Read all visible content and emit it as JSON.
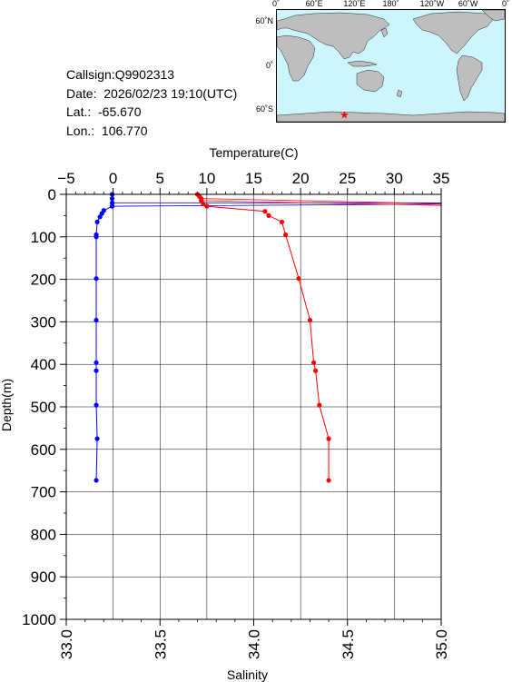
{
  "info": {
    "callsign": "Callsign:Q9902313",
    "date": "Date:  2026/02/23 19:10(UTC)",
    "lat": "Lat.:  -65.670",
    "lon": "Lon.:  106.770"
  },
  "map": {
    "top_labels": [
      "0˚",
      "60˚E",
      "120˚E",
      "180˚",
      "120˚W",
      "60˚W",
      "0˚"
    ],
    "left_labels": [
      "60˚N",
      "0˚",
      "60˚S"
    ],
    "station": {
      "lon": 106.77,
      "lat": -65.67
    },
    "colors": {
      "ocean": "#ccf6fb",
      "land": "#bebebe",
      "marker": "#ff0000"
    }
  },
  "chart_data": {
    "type": "line",
    "top_axis": {
      "label": "Temperature(C)",
      "range": [
        -5,
        35
      ],
      "ticks": [
        "−5",
        "0",
        "5",
        "10",
        "15",
        "20",
        "25",
        "30",
        "35"
      ]
    },
    "bottom_axis": {
      "label": "Salinity",
      "range": [
        33.0,
        35.0
      ],
      "ticks": [
        "33.0",
        "33.5",
        "34.0",
        "34.5",
        "35.0"
      ]
    },
    "y_axis": {
      "label": "Depth(m)",
      "range": [
        0,
        1000
      ],
      "inverted": true,
      "ticks": [
        "0",
        "100",
        "200",
        "300",
        "400",
        "500",
        "600",
        "700",
        "800",
        "900",
        "1000"
      ]
    },
    "grid": true,
    "series": [
      {
        "axis": "temperature",
        "color": "#0000ff",
        "points": [
          [
            -0.1,
            0
          ],
          [
            -0.1,
            10
          ],
          [
            -0.1,
            20
          ],
          [
            -0.1,
            28
          ],
          [
            -1.0,
            38
          ],
          [
            -1.2,
            45
          ],
          [
            -1.4,
            53
          ],
          [
            -1.7,
            65
          ],
          [
            -1.8,
            95
          ],
          [
            -1.8,
            100
          ],
          [
            -1.8,
            198
          ],
          [
            -1.8,
            296
          ],
          [
            -1.8,
            396
          ],
          [
            -1.8,
            415
          ],
          [
            -1.8,
            496
          ],
          [
            -1.7,
            575
          ],
          [
            -1.8,
            673
          ]
        ],
        "spike": [
          [
            35,
            20
          ],
          [
            35,
            23
          ]
        ]
      },
      {
        "axis": "salinity",
        "color": "#ff0000",
        "points": [
          [
            33.7,
            0
          ],
          [
            33.71,
            5
          ],
          [
            33.72,
            10
          ],
          [
            33.72,
            15
          ],
          [
            33.73,
            22
          ],
          [
            33.75,
            28
          ],
          [
            34.06,
            40
          ],
          [
            34.08,
            50
          ],
          [
            34.15,
            65
          ],
          [
            34.17,
            95
          ],
          [
            34.24,
            198
          ],
          [
            34.3,
            296
          ],
          [
            34.32,
            396
          ],
          [
            34.33,
            415
          ],
          [
            34.35,
            496
          ],
          [
            34.4,
            575
          ],
          [
            34.4,
            673
          ]
        ],
        "spike": [
          [
            35.0,
            22
          ],
          [
            35.0,
            26
          ]
        ]
      }
    ]
  }
}
